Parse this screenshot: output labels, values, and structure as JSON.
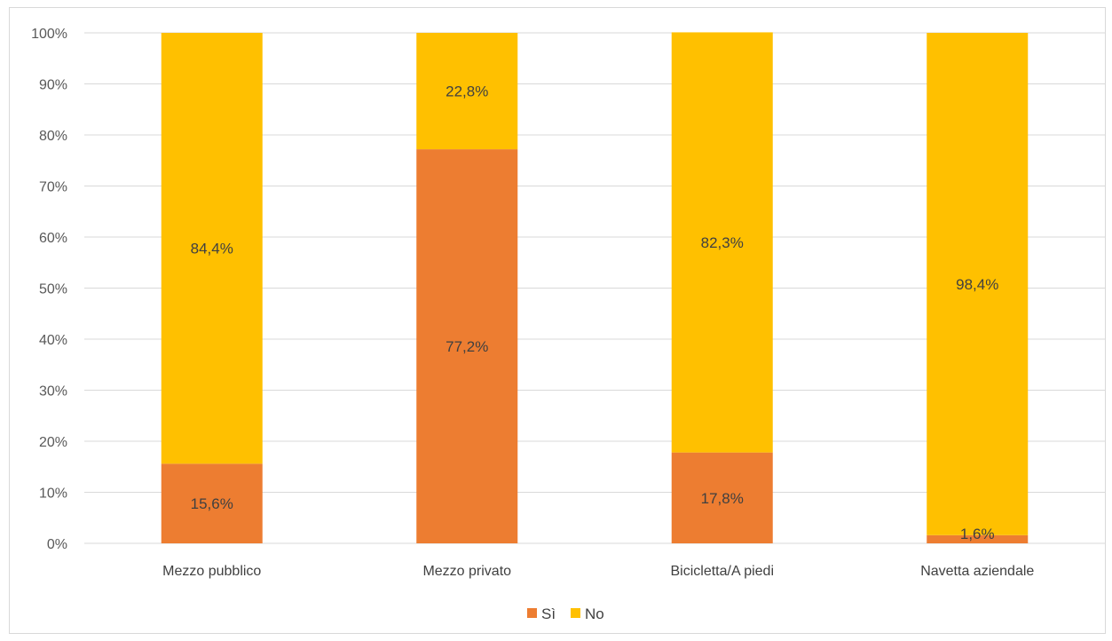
{
  "chart_data": {
    "type": "bar",
    "stacked": "100%",
    "categories": [
      "Mezzo pubblico",
      "Mezzo privato",
      "Bicicletta/A piedi",
      "Navetta aziendale"
    ],
    "series": [
      {
        "name": "Sì",
        "color": "#ED7D31",
        "values": [
          15.6,
          77.2,
          17.8,
          1.6
        ],
        "labels": [
          "15,6%",
          "77,2%",
          "17,8%",
          "1,6%"
        ]
      },
      {
        "name": "No",
        "color": "#FFC000",
        "values": [
          84.4,
          22.8,
          82.3,
          98.4
        ],
        "labels": [
          "84,4%",
          "22,8%",
          "82,3%",
          "98,4%"
        ]
      }
    ],
    "ylim": [
      0,
      100
    ],
    "yticks": [
      "0%",
      "10%",
      "20%",
      "30%",
      "40%",
      "50%",
      "60%",
      "70%",
      "80%",
      "90%",
      "100%"
    ],
    "grid": true,
    "legend_position": "bottom",
    "title": "",
    "xlabel": "",
    "ylabel": ""
  }
}
